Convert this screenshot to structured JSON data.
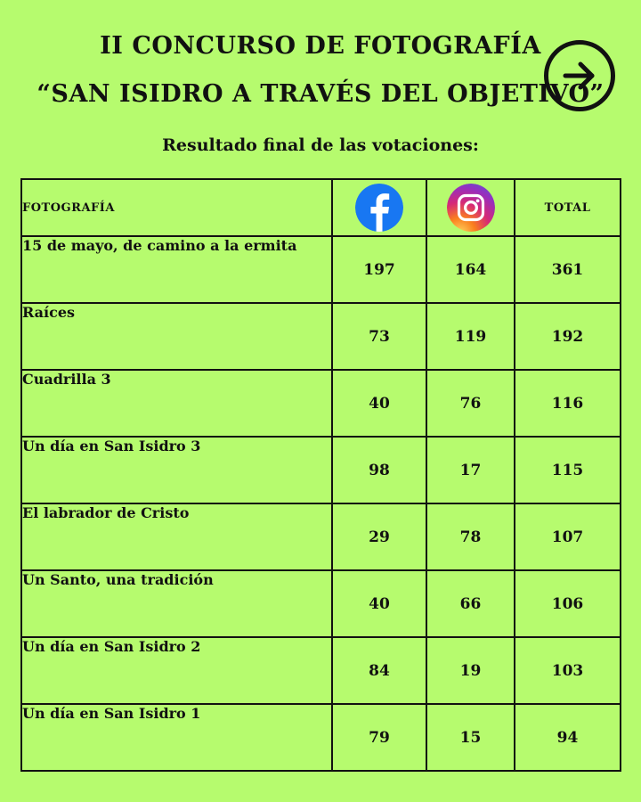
{
  "header": {
    "title_line1": "II CONCURSO DE FOTOGRAFÍA",
    "title_line2": "“SAN ISIDRO A TRAVÉS DEL OBJETIVO”",
    "subtitle": "Resultado final de las votaciones:",
    "next_icon": "arrow-right-circle-icon"
  },
  "table": {
    "col_photo": "FOTOGRAFÍA",
    "col_facebook_icon": "facebook-icon",
    "col_instagram_icon": "instagram-icon",
    "col_total": "TOTAL",
    "rows": [
      {
        "name": "15 de mayo, de camino a la ermita",
        "facebook": "197",
        "instagram": "164",
        "total": "361"
      },
      {
        "name": "Raíces",
        "facebook": "73",
        "instagram": "119",
        "total": "192"
      },
      {
        "name": "Cuadrilla 3",
        "facebook": "40",
        "instagram": "76",
        "total": "116"
      },
      {
        "name": "Un día en San Isidro 3",
        "facebook": "98",
        "instagram": "17",
        "total": "115"
      },
      {
        "name": "El labrador de Cristo",
        "facebook": "29",
        "instagram": "78",
        "total": "107"
      },
      {
        "name": "Un Santo, una tradición",
        "facebook": "40",
        "instagram": "66",
        "total": "106"
      },
      {
        "name": "Un día en San Isidro 2",
        "facebook": "84",
        "instagram": "19",
        "total": "103"
      },
      {
        "name": "Un día en San Isidro 1",
        "facebook": "79",
        "instagram": "15",
        "total": "94"
      }
    ]
  },
  "colors": {
    "background": "#b6fb6e",
    "ink": "#111111",
    "facebook_blue": "#1877f2"
  }
}
